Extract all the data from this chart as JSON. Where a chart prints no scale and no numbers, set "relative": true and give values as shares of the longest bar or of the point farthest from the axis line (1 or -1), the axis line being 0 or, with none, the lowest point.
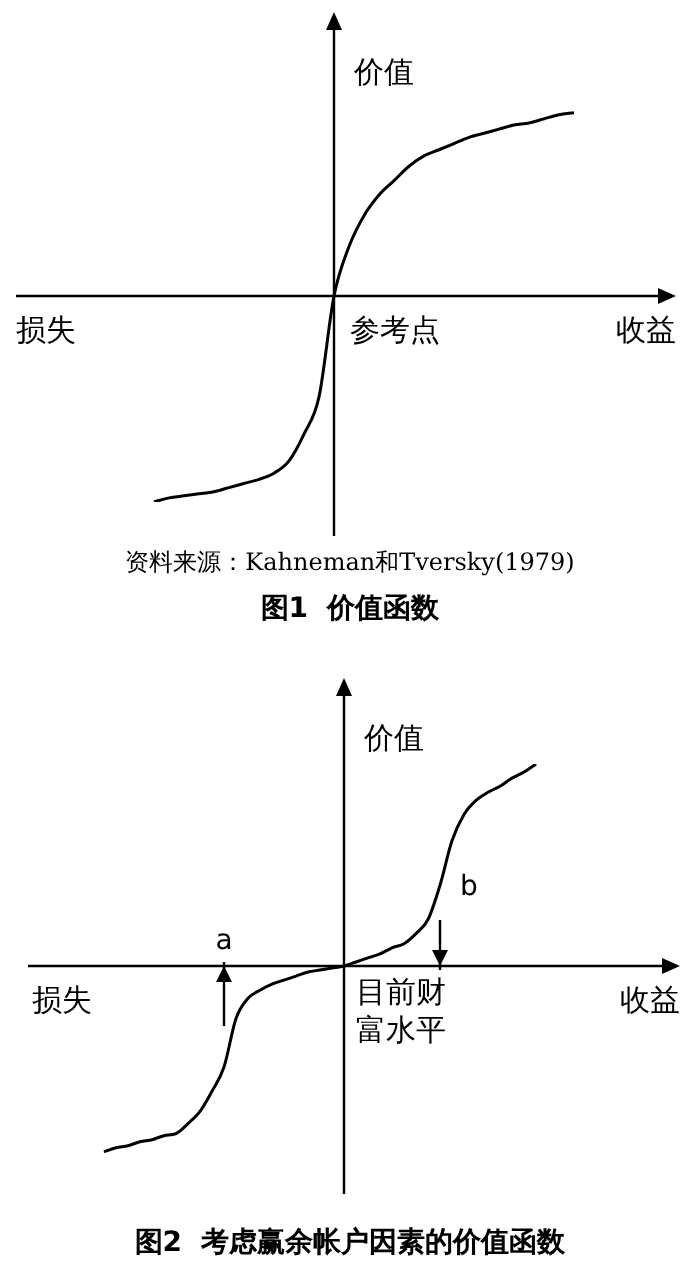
{
  "chart_data": [
    {
      "type": "line",
      "title": "图1  价值函数",
      "xlabel": "收益",
      "ylabel": "价值",
      "relative": true,
      "annotations": [
        "损失",
        "参考点",
        "资料来源：Kahneman和Tversky(1979)"
      ],
      "categories": [
        null,
        null,
        null,
        null,
        null,
        null,
        null,
        null,
        null,
        null,
        null,
        null,
        null,
        null,
        null,
        null,
        null,
        null,
        null,
        null,
        null,
        null,
        null,
        null,
        null,
        null,
        null,
        null,
        null
      ],
      "series": [
        {
          "color": "#000000",
          "values": [
            -1,
            -0.98,
            -0.97,
            -0.96,
            -0.95,
            -0.93,
            -0.91,
            -0.89,
            -0.86,
            -0.8,
            -0.67,
            -0.49,
            0,
            0.24,
            0.39,
            0.49,
            0.56,
            0.63,
            0.68,
            0.71,
            0.74,
            0.77,
            0.79,
            0.81,
            0.83,
            0.84,
            0.86,
            0.88,
            0.89
          ]
        }
      ]
    },
    {
      "type": "line",
      "title": "图2  考虑赢余帐户因素的价值函数",
      "xlabel": "收益",
      "ylabel": "价值",
      "relative": true,
      "annotations": [
        "损失",
        "目前财富水平",
        "a",
        "b"
      ],
      "categories": [
        null,
        null,
        null,
        null,
        null,
        null,
        null,
        null,
        null,
        null,
        null,
        null,
        null,
        null,
        null,
        null,
        null,
        null,
        null,
        null,
        null,
        null,
        null,
        null,
        null,
        null,
        null,
        null,
        null,
        null,
        null,
        null,
        null,
        null,
        null,
        null,
        null
      ],
      "series": [
        {
          "color": "#000000",
          "values": [
            -0.92,
            -0.9,
            -0.89,
            -0.87,
            -0.86,
            -0.84,
            -0.83,
            -0.78,
            -0.72,
            -0.62,
            -0.5,
            -0.26,
            -0.16,
            -0.12,
            -0.09,
            -0.07,
            -0.05,
            -0.03,
            -0.02,
            -0.01,
            0,
            0.02,
            0.04,
            0.06,
            0.09,
            0.11,
            0.16,
            0.23,
            0.4,
            0.62,
            0.75,
            0.82,
            0.86,
            0.89,
            0.93,
            0.96,
            1
          ]
        }
      ]
    }
  ]
}
